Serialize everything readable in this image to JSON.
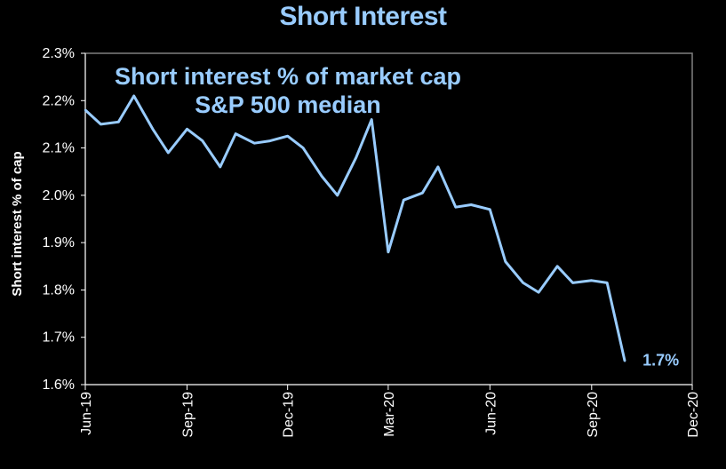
{
  "title": "Short Interest",
  "colors": {
    "background": "#000000",
    "line": "#99CCFF",
    "axis": "#FFFFFF",
    "plot_border": "#808080"
  },
  "chart_data": {
    "type": "line",
    "ylabel": "Short interest % of cap",
    "xlabel": "",
    "annotation_lines": [
      "Short interest % of market cap",
      "S&P 500 median"
    ],
    "end_label": "1.7%",
    "ylim": [
      1.6,
      2.3
    ],
    "yticks": [
      1.6,
      1.7,
      1.8,
      1.9,
      2.0,
      2.1,
      2.2,
      2.3
    ],
    "ytick_labels": [
      "1.6%",
      "1.7%",
      "1.8%",
      "1.9%",
      "2.0%",
      "2.1%",
      "2.2%",
      "2.3%"
    ],
    "xlim": [
      "2019-06-01",
      "2020-12-01"
    ],
    "xticks": [
      {
        "label": "Jun-19",
        "date": "2019-06-01"
      },
      {
        "label": "Sep-19",
        "date": "2019-09-01"
      },
      {
        "label": "Dec-19",
        "date": "2019-12-01"
      },
      {
        "label": "Mar-20",
        "date": "2020-03-01"
      },
      {
        "label": "Jun-20",
        "date": "2020-06-01"
      },
      {
        "label": "Sep-20",
        "date": "2020-09-01"
      },
      {
        "label": "Dec-20",
        "date": "2020-12-01"
      }
    ],
    "grid": false,
    "series": [
      {
        "points": [
          {
            "x": "2019-06-01",
            "y": 2.18
          },
          {
            "x": "2019-06-15",
            "y": 2.15
          },
          {
            "x": "2019-07-01",
            "y": 2.155
          },
          {
            "x": "2019-07-15",
            "y": 2.21
          },
          {
            "x": "2019-08-01",
            "y": 2.14
          },
          {
            "x": "2019-08-15",
            "y": 2.09
          },
          {
            "x": "2019-09-01",
            "y": 2.14
          },
          {
            "x": "2019-09-15",
            "y": 2.115
          },
          {
            "x": "2019-10-01",
            "y": 2.06
          },
          {
            "x": "2019-10-15",
            "y": 2.13
          },
          {
            "x": "2019-11-01",
            "y": 2.11
          },
          {
            "x": "2019-11-15",
            "y": 2.115
          },
          {
            "x": "2019-12-01",
            "y": 2.125
          },
          {
            "x": "2019-12-15",
            "y": 2.1
          },
          {
            "x": "2020-01-01",
            "y": 2.04
          },
          {
            "x": "2020-01-15",
            "y": 2.0
          },
          {
            "x": "2020-02-01",
            "y": 2.08
          },
          {
            "x": "2020-02-15",
            "y": 2.16
          },
          {
            "x": "2020-03-01",
            "y": 1.88
          },
          {
            "x": "2020-03-15",
            "y": 1.99
          },
          {
            "x": "2020-04-01",
            "y": 2.005
          },
          {
            "x": "2020-04-15",
            "y": 2.06
          },
          {
            "x": "2020-05-01",
            "y": 1.975
          },
          {
            "x": "2020-05-15",
            "y": 1.98
          },
          {
            "x": "2020-06-01",
            "y": 1.97
          },
          {
            "x": "2020-06-15",
            "y": 1.86
          },
          {
            "x": "2020-07-01",
            "y": 1.815
          },
          {
            "x": "2020-07-15",
            "y": 1.795
          },
          {
            "x": "2020-08-01",
            "y": 1.85
          },
          {
            "x": "2020-08-15",
            "y": 1.815
          },
          {
            "x": "2020-09-01",
            "y": 1.82
          },
          {
            "x": "2020-09-15",
            "y": 1.815
          },
          {
            "x": "2020-10-01",
            "y": 1.65
          }
        ]
      }
    ]
  }
}
